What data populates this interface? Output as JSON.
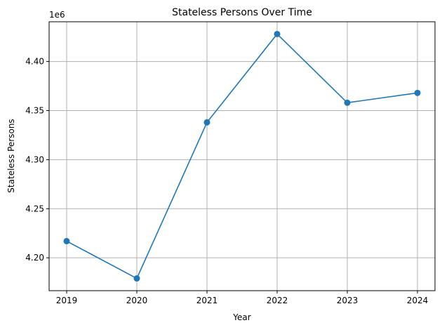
{
  "chart_data": {
    "type": "line",
    "title": "Stateless Persons Over Time",
    "xlabel": "Year",
    "ylabel": "Stateless Persons",
    "y_offset_label": "1e6",
    "x": [
      2019,
      2020,
      2021,
      2022,
      2023,
      2024
    ],
    "x_tick_labels": [
      "2019",
      "2020",
      "2021",
      "2022",
      "2023",
      "2024"
    ],
    "series": [
      {
        "values": [
          4217000,
          4179000,
          4338000,
          4428000,
          4358000,
          4368000
        ],
        "color": "#1f77b4",
        "marker": "circle"
      }
    ],
    "y_ticks": [
      4.2,
      4.25,
      4.3,
      4.35,
      4.4
    ],
    "y_tick_labels": [
      "4.20",
      "4.25",
      "4.30",
      "4.35",
      "4.40"
    ],
    "y_scale": 1000000,
    "xlim": [
      2018.75,
      2024.25
    ],
    "ylim": [
      4166500,
      4440500
    ],
    "grid": true
  }
}
